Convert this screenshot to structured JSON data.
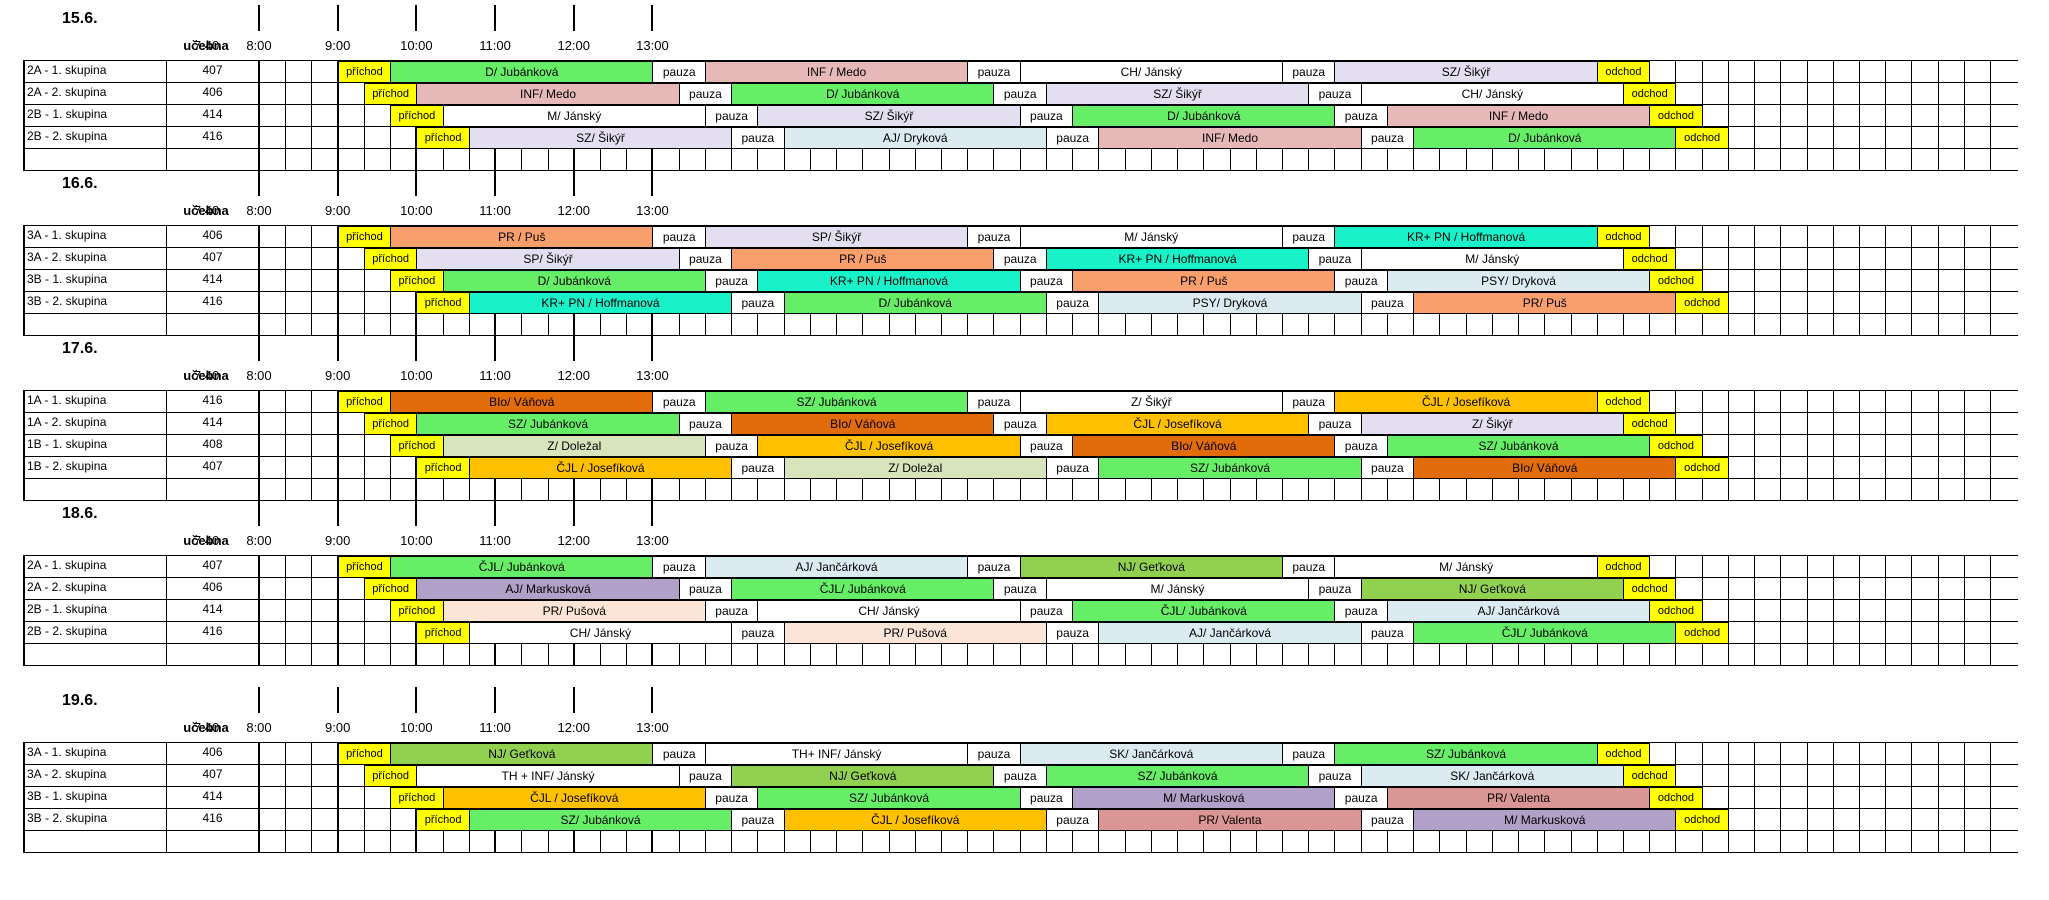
{
  "labels": {
    "ucebna": "učebna",
    "prichod": "příchod",
    "odchod": "odchod",
    "pauza": "pauza"
  },
  "times": [
    "7:40",
    "8:00",
    "9:00",
    "10:00",
    "11:00",
    "12:00",
    "13:00"
  ],
  "colors": {
    "green": "#66ee66",
    "pink": "#e6b8b8",
    "lavender": "#e4dff0",
    "white": "#ffffff",
    "lightblue": "#dcebf2",
    "salmon": "#f99f6c",
    "cyan": "#19f2c8",
    "orange_dark": "#e26b0a",
    "amber": "#ffc000",
    "sage": "#d8e4bc",
    "olive": "#92d050",
    "purple": "#b1a0c7",
    "peach": "#fce4d6",
    "rose": "#da9694"
  },
  "days": [
    {
      "date": "15.6.",
      "rows": [
        {
          "group": "2A - 1. skupina",
          "room": "407",
          "start": 0,
          "subjects": [
            {
              "text": "D/ Jubánková",
              "color": "green"
            },
            {
              "text": "INF / Medo",
              "color": "pink"
            },
            {
              "text": "CH/ Jánský",
              "color": "white"
            },
            {
              "text": "SZ/ Šikýř",
              "color": "lavender"
            }
          ]
        },
        {
          "group": "2A - 2. skupina",
          "room": "406",
          "start": 1,
          "subjects": [
            {
              "text": "INF/ Medo",
              "color": "pink"
            },
            {
              "text": "D/ Jubánková",
              "color": "green"
            },
            {
              "text": "SZ/ Šikýř",
              "color": "lavender"
            },
            {
              "text": "CH/ Jánský",
              "color": "white"
            }
          ]
        },
        {
          "group": "2B - 1. skupina",
          "room": "414",
          "start": 2,
          "subjects": [
            {
              "text": "M/ Jánský",
              "color": "white"
            },
            {
              "text": "SZ/ Šikýř",
              "color": "lavender"
            },
            {
              "text": "D/ Jubánková",
              "color": "green"
            },
            {
              "text": "INF / Medo",
              "color": "pink"
            }
          ]
        },
        {
          "group": "2B - 2. skupina",
          "room": "416",
          "start": 3,
          "subjects": [
            {
              "text": "SZ/ Šikýř",
              "color": "lavender"
            },
            {
              "text": "AJ/ Dryková",
              "color": "lightblue"
            },
            {
              "text": "INF/ Medo",
              "color": "pink"
            },
            {
              "text": "D/ Jubánková",
              "color": "green"
            }
          ]
        }
      ]
    },
    {
      "date": "16.6.",
      "rows": [
        {
          "group": "3A - 1. skupina",
          "room": "406",
          "start": 0,
          "subjects": [
            {
              "text": "PR / Puš",
              "color": "salmon"
            },
            {
              "text": "SP/ Šikýř",
              "color": "lavender"
            },
            {
              "text": "M/ Jánský",
              "color": "white"
            },
            {
              "text": "KR+ PN / Hoffmanová",
              "color": "cyan"
            }
          ]
        },
        {
          "group": "3A - 2. skupina",
          "room": "407",
          "start": 1,
          "subjects": [
            {
              "text": "SP/ Šikýř",
              "color": "lavender"
            },
            {
              "text": "PR / Puš",
              "color": "salmon"
            },
            {
              "text": "KR+ PN / Hoffmanová",
              "color": "cyan"
            },
            {
              "text": "M/ Jánský",
              "color": "white"
            }
          ]
        },
        {
          "group": "3B - 1. skupina",
          "room": "414",
          "start": 2,
          "subjects": [
            {
              "text": "D/ Jubánková",
              "color": "green"
            },
            {
              "text": "KR+ PN / Hoffmanová",
              "color": "cyan"
            },
            {
              "text": "PR / Puš",
              "color": "salmon"
            },
            {
              "text": "PSY/ Dryková",
              "color": "lightblue"
            }
          ]
        },
        {
          "group": "3B - 2. skupina",
          "room": "416",
          "start": 3,
          "subjects": [
            {
              "text": "KR+ PN / Hoffmanová",
              "color": "cyan"
            },
            {
              "text": "D/ Jubánková",
              "color": "green"
            },
            {
              "text": "PSY/ Dryková",
              "color": "lightblue"
            },
            {
              "text": "PR/ Puš",
              "color": "salmon"
            }
          ]
        }
      ]
    },
    {
      "date": "17.6.",
      "rows": [
        {
          "group": "1A - 1. skupina",
          "room": "416",
          "start": 0,
          "subjects": [
            {
              "text": "BIo/ Váňová",
              "color": "orange_dark"
            },
            {
              "text": "SZ/ Jubánková",
              "color": "green"
            },
            {
              "text": "Z/ Šikýř",
              "color": "white"
            },
            {
              "text": "ČJL / Josefíková",
              "color": "amber"
            }
          ]
        },
        {
          "group": "1A - 2. skupina",
          "room": "414",
          "start": 1,
          "subjects": [
            {
              "text": "SZ/ Jubánková",
              "color": "green"
            },
            {
              "text": "BIo/ Váňová",
              "color": "orange_dark"
            },
            {
              "text": "ČJL / Josefíková",
              "color": "amber"
            },
            {
              "text": "Z/ Šikýř",
              "color": "lavender"
            }
          ]
        },
        {
          "group": "1B - 1. skupina",
          "room": "408",
          "start": 2,
          "subjects": [
            {
              "text": "Z/ Doležal",
              "color": "sage"
            },
            {
              "text": "ČJL / Josefíková",
              "color": "amber"
            },
            {
              "text": "BIo/ Váňová",
              "color": "orange_dark"
            },
            {
              "text": "SZ/ Jubánková",
              "color": "green"
            }
          ]
        },
        {
          "group": "1B - 2. skupina",
          "room": "407",
          "start": 3,
          "subjects": [
            {
              "text": "ČJL / Josefíková",
              "color": "amber"
            },
            {
              "text": "Z/ Doležal",
              "color": "sage"
            },
            {
              "text": "SZ/ Jubánková",
              "color": "green"
            },
            {
              "text": "BIo/ Váňová",
              "color": "orange_dark"
            }
          ]
        }
      ]
    },
    {
      "date": "18.6.",
      "rows": [
        {
          "group": "2A - 1. skupina",
          "room": "407",
          "start": 0,
          "subjects": [
            {
              "text": "ČJL/ Jubánková",
              "color": "green"
            },
            {
              "text": "AJ/ Jančárková",
              "color": "lightblue"
            },
            {
              "text": "NJ/ Geťková",
              "color": "olive"
            },
            {
              "text": "M/ Jánský",
              "color": "white"
            }
          ]
        },
        {
          "group": "2A - 2. skupina",
          "room": "406",
          "start": 1,
          "subjects": [
            {
              "text": "AJ/ Markusková",
              "color": "purple"
            },
            {
              "text": "ČJL/ Jubánková",
              "color": "green"
            },
            {
              "text": "M/ Jánský",
              "color": "white"
            },
            {
              "text": "NJ/ Geťková",
              "color": "olive"
            }
          ]
        },
        {
          "group": "2B - 1. skupina",
          "room": "414",
          "start": 2,
          "subjects": [
            {
              "text": "PR/ Pušová",
              "color": "peach"
            },
            {
              "text": "CH/ Jánský",
              "color": "white"
            },
            {
              "text": "ČJL/ Jubánková",
              "color": "green"
            },
            {
              "text": "AJ/ Jančárková",
              "color": "lightblue"
            }
          ]
        },
        {
          "group": "2B - 2. skupina",
          "room": "416",
          "start": 3,
          "subjects": [
            {
              "text": "CH/ Jánský",
              "color": "white"
            },
            {
              "text": "PR/ Pušová",
              "color": "peach"
            },
            {
              "text": "AJ/ Jančárková",
              "color": "lightblue"
            },
            {
              "text": "ČJL/ Jubánková",
              "color": "green"
            }
          ]
        }
      ]
    },
    {
      "date": "19.6.",
      "rows": [
        {
          "group": "3A - 1. skupina",
          "room": "406",
          "start": 0,
          "subjects": [
            {
              "text": "NJ/ Geťková",
              "color": "olive"
            },
            {
              "text": "TH+ INF/ Jánský",
              "color": "white"
            },
            {
              "text": "SK/ Jančárková",
              "color": "lightblue"
            },
            {
              "text": "SZ/ Jubánková",
              "color": "green"
            }
          ]
        },
        {
          "group": "3A - 2. skupina",
          "room": "407",
          "start": 1,
          "subjects": [
            {
              "text": "TH + INF/ Jánský",
              "color": "white"
            },
            {
              "text": "NJ/ Geťková",
              "color": "olive"
            },
            {
              "text": "SZ/ Jubánková",
              "color": "green"
            },
            {
              "text": "SK/ Jančárková",
              "color": "lightblue"
            }
          ]
        },
        {
          "group": "3B - 1. skupina",
          "room": "414",
          "start": 2,
          "subjects": [
            {
              "text": "ČJL / Josefíková",
              "color": "amber"
            },
            {
              "text": "SZ/ Jubánková",
              "color": "green"
            },
            {
              "text": "M/ Markusková",
              "color": "purple"
            },
            {
              "text": "PR/ Valenta",
              "color": "rose"
            }
          ]
        },
        {
          "group": "3B - 2. skupina",
          "room": "416",
          "start": 3,
          "subjects": [
            {
              "text": "SZ/ Jubánková",
              "color": "green"
            },
            {
              "text": "ČJL / Josefíková",
              "color": "amber"
            },
            {
              "text": "PR/ Valenta",
              "color": "rose"
            },
            {
              "text": "M/ Markusková",
              "color": "purple"
            }
          ]
        }
      ]
    }
  ]
}
